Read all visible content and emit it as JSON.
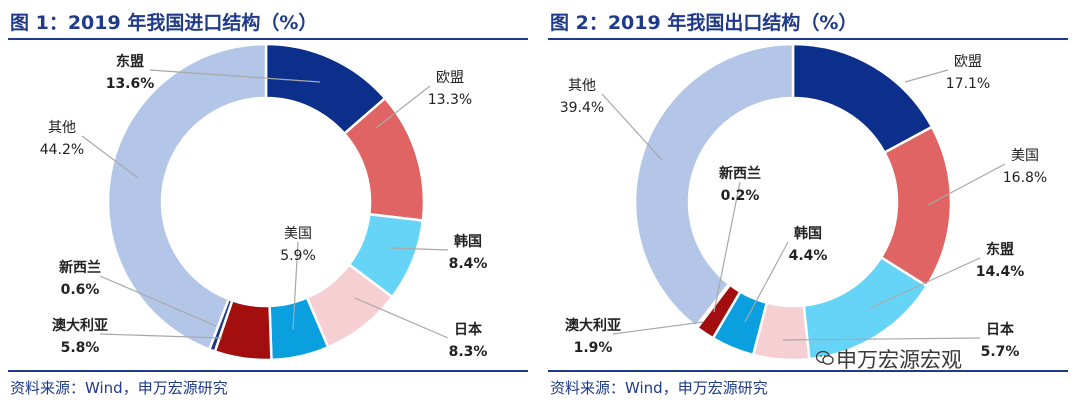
{
  "chart_data": [
    {
      "type": "pie",
      "donut": true,
      "title": "图 1：2019 年我国进口结构（%）",
      "source": "资料来源：Wind，申万宏源研究",
      "slices": [
        {
          "name": "东盟",
          "value": 13.6,
          "label": "13.6%",
          "color": "#0b2f8a",
          "bold": true
        },
        {
          "name": "欧盟",
          "value": 13.3,
          "label": "13.3%",
          "color": "#e06464",
          "bold": false
        },
        {
          "name": "韩国",
          "value": 8.4,
          "label": "8.4%",
          "color": "#66d4f7",
          "bold": true
        },
        {
          "name": "日本",
          "value": 8.3,
          "label": "8.3%",
          "color": "#f6cfd3",
          "bold": true
        },
        {
          "name": "美国",
          "value": 5.9,
          "label": "5.9%",
          "color": "#0aa0e0",
          "bold": false
        },
        {
          "name": "澳大利亚",
          "value": 5.8,
          "label": "5.8%",
          "color": "#a30f0f",
          "bold": true
        },
        {
          "name": "新西兰",
          "value": 0.6,
          "label": "0.6%",
          "color": "#1f3a8a",
          "bold": true
        },
        {
          "name": "其他",
          "value": 44.2,
          "label": "44.2%",
          "color": "#b3c6e7",
          "bold": false
        }
      ]
    },
    {
      "type": "pie",
      "donut": true,
      "title": "图 2：2019 年我国出口结构（%）",
      "source": "资料来源：Wind，申万宏源研究",
      "slices": [
        {
          "name": "欧盟",
          "value": 17.1,
          "label": "17.1%",
          "color": "#0b2f8a",
          "bold": false
        },
        {
          "name": "美国",
          "value": 16.8,
          "label": "16.8%",
          "color": "#e06464",
          "bold": false
        },
        {
          "name": "东盟",
          "value": 14.4,
          "label": "14.4%",
          "color": "#66d4f7",
          "bold": true
        },
        {
          "name": "日本",
          "value": 5.7,
          "label": "5.7%",
          "color": "#f6cfd3",
          "bold": true
        },
        {
          "name": "韩国",
          "value": 4.4,
          "label": "4.4%",
          "color": "#0aa0e0",
          "bold": true
        },
        {
          "name": "澳大利亚",
          "value": 1.9,
          "label": "1.9%",
          "color": "#a30f0f",
          "bold": true
        },
        {
          "name": "新西兰",
          "value": 0.2,
          "label": "0.2%",
          "color": "#1f3a8a",
          "bold": true
        },
        {
          "name": "其他",
          "value": 39.4,
          "label": "39.4%",
          "color": "#b3c6e7",
          "bold": false
        }
      ]
    }
  ],
  "watermark": "申万宏源宏观",
  "colors": {
    "title": "#1f3a8a",
    "label": "#222222"
  }
}
